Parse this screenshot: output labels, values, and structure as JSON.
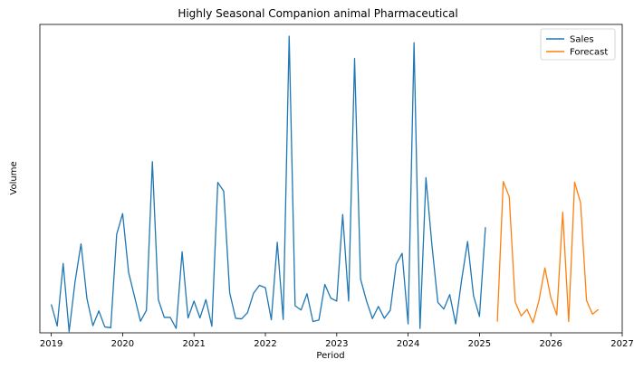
{
  "chart_data": {
    "type": "line",
    "title": "Highly Seasonal Companion animal Pharmaceutical",
    "xlabel": "Period",
    "ylabel": "Volume",
    "x_ticks": [
      "2019",
      "2020",
      "2021",
      "2022",
      "2023",
      "2024",
      "2025",
      "2026",
      "2027"
    ],
    "xlim": [
      2018.84,
      2027.0
    ],
    "ylim": [
      0,
      100
    ],
    "y_ticks_shown": false,
    "legend": {
      "placement": "top-right"
    },
    "series": [
      {
        "name": "Sales",
        "color": "#1f77b4",
        "start": 2019.0,
        "step": 0.08333,
        "values": [
          9.6,
          2.3,
          23.4,
          0.4,
          17.2,
          30.0,
          11.5,
          2.4,
          7.4,
          2.0,
          1.7,
          33.2,
          40.2,
          20.4,
          12.2,
          3.9,
          7.6,
          57.7,
          11.2,
          5.2,
          5.2,
          1.5,
          27.3,
          5.0,
          10.7,
          5.0,
          11.2,
          2.2,
          50.7,
          47.7,
          13.5,
          4.9,
          4.7,
          6.8,
          13.3,
          16.0,
          15.2,
          4.4,
          30.5,
          4.5,
          100.0,
          9.1,
          7.7,
          13.2,
          3.8,
          4.3,
          16.3,
          11.7,
          10.7,
          39.9,
          10.7,
          92.5,
          18.2,
          10.8,
          4.8,
          8.9,
          4.9,
          7.6,
          23.1,
          26.8,
          3.0,
          97.8,
          1.5,
          52.3,
          29.7,
          10.3,
          8.0,
          12.9,
          3.0,
          17.8,
          30.8,
          12.5,
          5.5,
          35.6
        ]
      },
      {
        "name": "Forecast",
        "color": "#ff7f0e",
        "start": 2025.25,
        "step": 0.08333,
        "values": [
          3.8,
          51.0,
          45.9,
          10.4,
          5.7,
          7.9,
          3.4,
          10.9,
          21.9,
          11.8,
          6.0,
          40.7,
          3.8,
          50.8,
          43.8,
          10.9,
          6.3,
          7.9
        ]
      }
    ]
  }
}
